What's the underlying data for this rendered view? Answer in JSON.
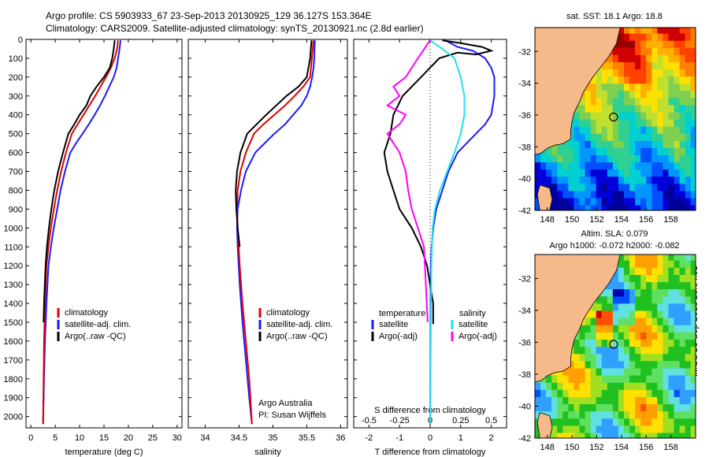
{
  "header": {
    "title_line1": "Argo profile: CS 5903933_67 23-Sep-2013 20130925_129 36.127S 153.364E",
    "title_line2": "Climatology: CARS2009. Satellite-adjusted climatology: synTS_20130921.nc (2.8d earlier)"
  },
  "stamp": "IMOS 26-Sep-2013 20:04:01",
  "colors": {
    "climatology": "#e00000",
    "satellite": "#1a1aff",
    "argo": "#000000",
    "sat_s": "#22e0ee",
    "argo_s": "#ff00ff",
    "land": "#f5b98a"
  },
  "chart_data": [
    {
      "id": "temp",
      "type": "line",
      "xlabel": "temperature (deg C)",
      "ylabel": "",
      "xlim": [
        -1,
        31
      ],
      "ylim": [
        2060,
        0
      ],
      "xticks": [
        0,
        5,
        10,
        15,
        20,
        25,
        30
      ],
      "xtick_labels": [
        "0",
        "5",
        "10",
        "15",
        "20",
        "25",
        "30"
      ],
      "yticks": [
        0,
        100,
        200,
        300,
        400,
        500,
        600,
        700,
        800,
        900,
        1000,
        1100,
        1200,
        1300,
        1400,
        1500,
        1600,
        1700,
        1800,
        1900,
        2000
      ],
      "ytick_labels": [
        "0",
        "100",
        "200",
        "300",
        "400",
        "500",
        "600",
        "700",
        "800",
        "900",
        "1000",
        "1100",
        "1200",
        "1300",
        "1400",
        "1500",
        "1600",
        "1700",
        "1800",
        "1900",
        "2000"
      ],
      "legend": [
        {
          "label": "climatology",
          "series": "climatology"
        },
        {
          "label": "satellite-adj. clim.",
          "series": "satellite"
        },
        {
          "label": "Argo(..raw -QC)",
          "series": "argo"
        }
      ],
      "series": [
        {
          "name": "satellite",
          "color": "satellite",
          "x": [
            18.4,
            18.2,
            17.9,
            17.6,
            17,
            16.1,
            15.2,
            14.2,
            13.1,
            11.9,
            10.6,
            9.3,
            8.1,
            7,
            6.1,
            5.4,
            4.7,
            4.1,
            3.6,
            3.2,
            2.9,
            2.7,
            2.5
          ],
          "y": [
            5,
            50,
            100,
            150,
            200,
            250,
            300,
            350,
            400,
            450,
            500,
            550,
            600,
            700,
            800,
            900,
            1000,
            1100,
            1200,
            1400,
            1600,
            1800,
            2040
          ]
        },
        {
          "name": "climatology",
          "color": "climatology",
          "x": [
            17.9,
            17.7,
            17.2,
            16.4,
            15.4,
            14.3,
            13.2,
            12,
            10.8,
            9.6,
            8.4,
            7.2,
            6.2,
            5.4,
            4.7,
            4.1,
            3.6,
            3.2,
            2.9,
            2.7,
            2.5
          ],
          "y": [
            5,
            50,
            100,
            150,
            200,
            250,
            300,
            350,
            400,
            450,
            500,
            600,
            700,
            800,
            900,
            1000,
            1100,
            1200,
            1400,
            1600,
            2040
          ]
        },
        {
          "name": "argo",
          "color": "argo",
          "x": [
            17.2,
            17,
            16.7,
            16.2,
            15,
            13.5,
            12.2,
            11.4,
            10,
            8.9,
            7.7,
            6.6,
            5.6,
            4.8,
            4.2,
            3.7,
            3.3,
            3,
            2.7,
            2.6
          ],
          "y": [
            5,
            50,
            100,
            150,
            200,
            250,
            300,
            350,
            400,
            450,
            500,
            600,
            700,
            800,
            900,
            1000,
            1100,
            1200,
            1400,
            1500
          ]
        }
      ]
    },
    {
      "id": "sal",
      "type": "line",
      "xlabel": "salinity",
      "ylabel": "",
      "xlim": [
        33.75,
        36.1
      ],
      "ylim": [
        2060,
        0
      ],
      "xticks": [
        34,
        34.5,
        35,
        35.5,
        36
      ],
      "xtick_labels": [
        "34",
        "34.5",
        "35",
        "35.5",
        "36"
      ],
      "legend": [
        {
          "label": "climatology",
          "series": "climatology"
        },
        {
          "label": "satellite-adj. clim.",
          "series": "satellite"
        },
        {
          "label": "Argo(..raw -QC)",
          "series": "argo"
        }
      ],
      "annotation": [
        "Argo Australia",
        "PI: Susan Wijffels"
      ],
      "series": [
        {
          "name": "satellite",
          "color": "satellite",
          "x": [
            35.62,
            35.61,
            35.6,
            35.58,
            35.55,
            35.5,
            35.42,
            35.3,
            35.18,
            35.02,
            34.88,
            34.74,
            34.6,
            34.53,
            34.48,
            34.47,
            34.48,
            34.51,
            34.55,
            34.6,
            34.65,
            34.69
          ],
          "y": [
            5,
            100,
            150,
            200,
            250,
            300,
            350,
            400,
            450,
            500,
            550,
            600,
            700,
            800,
            900,
            1000,
            1100,
            1300,
            1500,
            1700,
            1900,
            2040
          ]
        },
        {
          "name": "climatology",
          "color": "climatology",
          "x": [
            35.6,
            35.55,
            35.45,
            35.32,
            35.18,
            35.02,
            34.86,
            34.72,
            34.6,
            34.52,
            34.48,
            34.47,
            34.48,
            34.51,
            34.55,
            34.6,
            34.65,
            34.69
          ],
          "y": [
            5,
            200,
            250,
            300,
            350,
            400,
            450,
            500,
            600,
            700,
            800,
            900,
            1000,
            1200,
            1400,
            1600,
            1800,
            2040
          ]
        },
        {
          "name": "argo",
          "color": "argo",
          "x": [
            35.57,
            35.55,
            35.5,
            35.38,
            35.2,
            35.05,
            34.9,
            34.76,
            34.62,
            34.52,
            34.47,
            34.45,
            34.46,
            34.48,
            34.51
          ],
          "y": [
            5,
            100,
            200,
            250,
            300,
            350,
            400,
            450,
            500,
            600,
            700,
            800,
            900,
            1000,
            1100
          ]
        }
      ]
    },
    {
      "id": "diff",
      "type": "line",
      "xlabel": "T difference from climatology",
      "x2label": "S difference from climatology",
      "xlim": [
        -2.5,
        2.5
      ],
      "ylim": [
        2060,
        0
      ],
      "xticks": [
        -2,
        -1,
        0,
        1,
        2
      ],
      "xtick_labels": [
        "-2",
        "-1",
        "0",
        "1",
        "2"
      ],
      "x2ticks": [
        -0.5,
        -0.25,
        0,
        0.25,
        0.5
      ],
      "x2tick_labels": [
        "-0.5",
        "-0.25",
        "0",
        "0.25",
        "0.5"
      ],
      "legend_headers": [
        "temperature",
        "salinity"
      ],
      "legend": [
        {
          "label": "satellite",
          "series": "satellite"
        },
        {
          "label": "Argo(-adj)",
          "series": "argo"
        },
        {
          "label": "satellite",
          "series": "sat_s"
        },
        {
          "label": "Argo(-adj)",
          "series": "argo_s"
        }
      ],
      "series": [
        {
          "name": "sat_T",
          "color": "satellite",
          "x": [
            0.5,
            0.9,
            1.4,
            1.8,
            2,
            2.1,
            2.1,
            2,
            1.8,
            1.5,
            1.2,
            0.9,
            0.6,
            0.4,
            0.2,
            0.1,
            0.05,
            0.02,
            0
          ],
          "y": [
            5,
            40,
            60,
            100,
            150,
            200,
            300,
            400,
            450,
            500,
            550,
            600,
            700,
            800,
            900,
            1000,
            1100,
            1200,
            2040
          ]
        },
        {
          "name": "argo_T",
          "color": "argo",
          "x": [
            0.4,
            1,
            1.7,
            2,
            1.5,
            0.9,
            0.3,
            -0.3,
            -0.9,
            -1.2,
            -1.3,
            -1.5,
            -1.4,
            -1.2,
            -1,
            -0.6,
            -0.3,
            -0.1,
            0,
            0.1,
            0.1,
            0.1
          ],
          "y": [
            5,
            20,
            40,
            60,
            80,
            70,
            100,
            200,
            300,
            400,
            500,
            600,
            700,
            800,
            900,
            1000,
            1100,
            1200,
            1300,
            1400,
            1500,
            1510
          ]
        },
        {
          "name": "sat_S",
          "color": "sat_s",
          "x": [
            0,
            0.1,
            0.2,
            0.25,
            0.28,
            0.28,
            0.25,
            0.2,
            0.14,
            0.08,
            0.04,
            0.02,
            0.01,
            0
          ],
          "y": [
            5,
            50,
            100,
            200,
            300,
            400,
            500,
            600,
            700,
            800,
            900,
            1000,
            1200,
            2040
          ]
        },
        {
          "name": "argo_S",
          "color": "argo_s",
          "x": [
            0,
            -0.1,
            -0.15,
            -0.2,
            -0.3,
            -0.25,
            -0.35,
            -0.2,
            -0.25,
            -0.35,
            -0.25,
            -0.2,
            -0.18,
            -0.15,
            -0.1,
            -0.05,
            -0.02
          ],
          "y": [
            5,
            100,
            150,
            200,
            250,
            300,
            350,
            400,
            450,
            500,
            600,
            700,
            800,
            900,
            1000,
            1100,
            1500
          ]
        }
      ]
    },
    {
      "id": "sst_map",
      "type": "heatmap",
      "title": "sat. SST: 18.1  Argo: 18.8",
      "xlim": [
        147,
        160
      ],
      "ylim": [
        -42,
        -30.5
      ],
      "xticks": [
        148,
        150,
        152,
        154,
        156,
        158
      ],
      "xtick_labels": [
        "148",
        "150",
        "152",
        "154",
        "156",
        "158"
      ],
      "yticks": [
        -32,
        -34,
        -36,
        -38,
        -40,
        -42
      ],
      "ytick_labels": [
        "-32",
        "-34",
        "-36",
        "-38",
        "-40",
        "-42"
      ],
      "marker": {
        "lon": 153.364,
        "lat": -36.127
      }
    },
    {
      "id": "sla_map",
      "type": "heatmap",
      "title": "Altim. SLA: 0.079",
      "subtitle": "Argo h1000: -0.072 h2000: -0.082",
      "xlim": [
        147,
        160
      ],
      "ylim": [
        -42,
        -30.5
      ],
      "xticks": [
        148,
        150,
        152,
        154,
        156,
        158
      ],
      "xtick_labels": [
        "148",
        "150",
        "152",
        "154",
        "156",
        "158"
      ],
      "yticks": [
        -32,
        -34,
        -36,
        -38,
        -40,
        -42
      ],
      "ytick_labels": [
        "-32",
        "-34",
        "-36",
        "-38",
        "-40",
        "-42"
      ],
      "marker": {
        "lon": 153.364,
        "lat": -36.127
      }
    }
  ]
}
